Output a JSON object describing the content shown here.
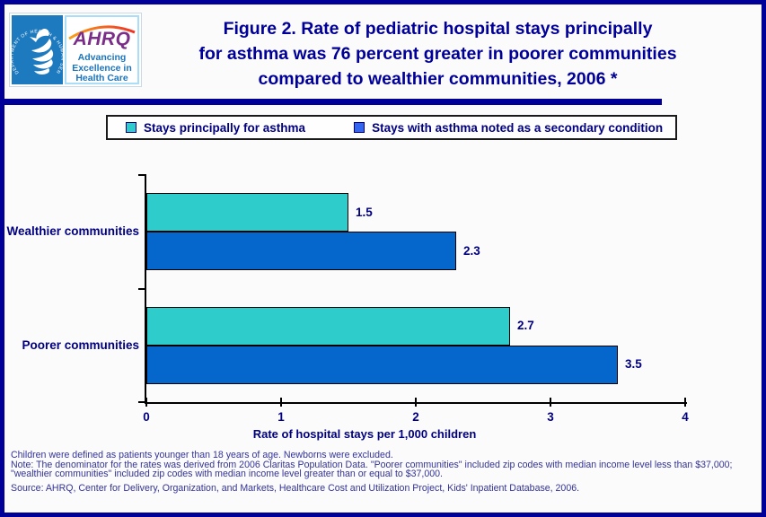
{
  "header": {
    "logo": {
      "seal_text": "DEPARTMENT OF HEALTH & HUMAN SERVICES · USA",
      "acronym": "AHRQ",
      "tagline": "Advancing\nExcellence in\nHealth Care",
      "hhs_blue": "#1E7ABF",
      "ahrq_purple": "#7B2E88",
      "tagline_blue": "#1B75BC",
      "arc_orange": "#F9A11B",
      "arc_red": "#EE3124"
    },
    "title": "Figure 2. Rate of pediatric hospital stays principally\nfor asthma was 76 percent greater in poorer communities\ncompared to wealthier communities, 2006 *",
    "title_color": "#000099"
  },
  "chart_data": {
    "type": "bar",
    "orientation": "horizontal",
    "categories": [
      "Wealthier communities",
      "Poorer communities"
    ],
    "series": [
      {
        "name": "Stays principally for asthma",
        "color": "#2FCCCC",
        "legend_swatch_color": "#2FCCCC",
        "values": [
          1.5,
          2.7
        ]
      },
      {
        "name": "Stays with asthma noted as a secondary condition",
        "color": "#0566CC",
        "legend_swatch_color": "#3366F0",
        "values": [
          2.3,
          3.5
        ]
      }
    ],
    "xlabel": "Rate of hospital stays per 1,000 children",
    "xlim": [
      0,
      4
    ],
    "xticks": [
      0,
      1,
      2,
      3,
      4
    ],
    "data_labels": true,
    "legend_position": "top",
    "grid": false
  },
  "footer": {
    "note1": "Children were defined as patients younger than 18 years of age. Newborns were excluded.",
    "note2": "Note: The denominator for the rates was derived from 2006 Claritas Population Data. \"Poorer communities\" included zip codes with median income level less than $37,000; \"wealthier communities\" included zip codes with median income level greater than or equal to $37,000.",
    "source": "Source: AHRQ, Center for Delivery, Organization, and Markets, Healthcare Cost and Utilization Project, Kids' Inpatient Database, 2006.",
    "text_color": "#333399"
  }
}
